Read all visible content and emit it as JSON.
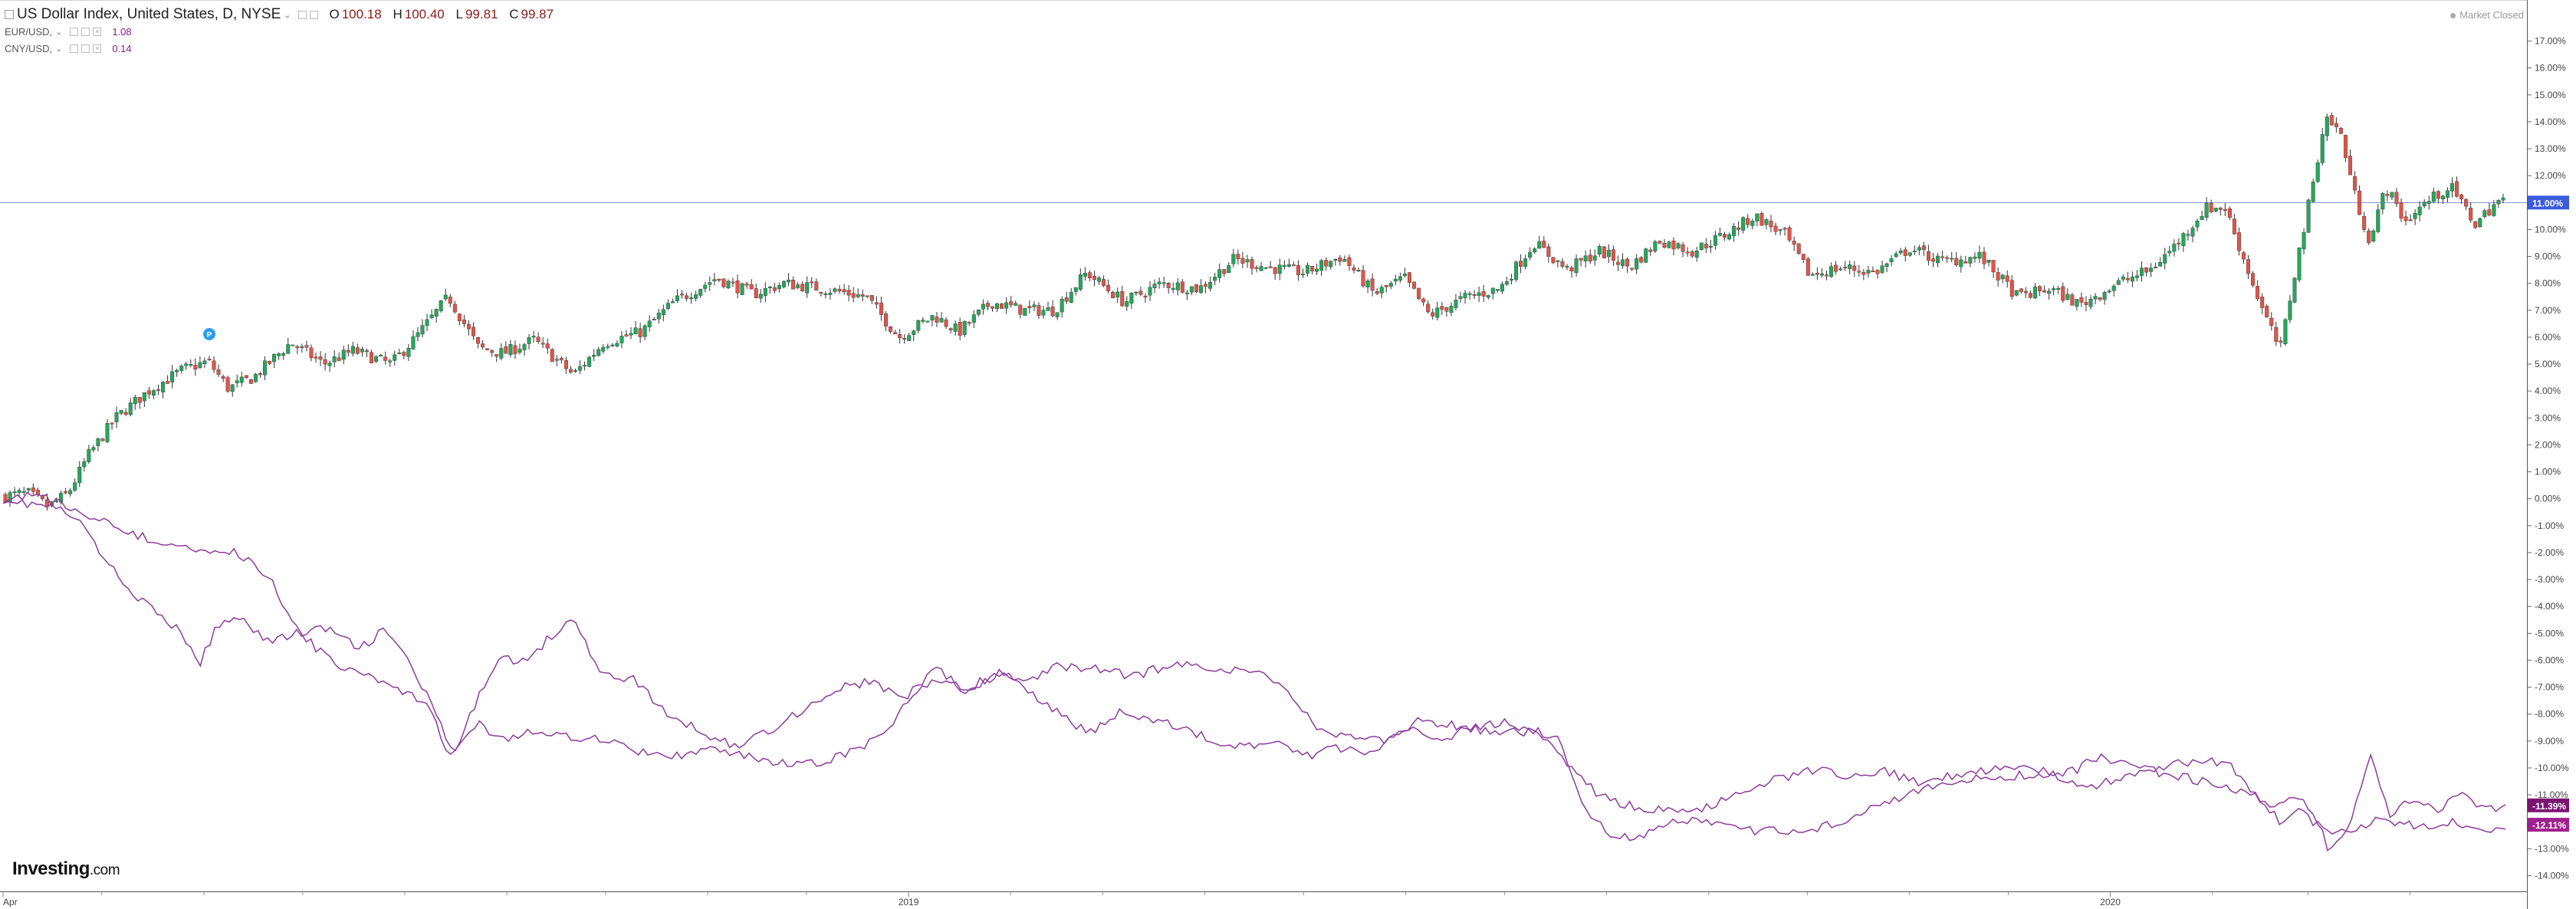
{
  "legend": {
    "main": {
      "title": "US Dollar Index, United States, D, NYSE",
      "open_label": "O",
      "open": "100.18",
      "high_label": "H",
      "high": "100.40",
      "low_label": "L",
      "low": "99.81",
      "close_label": "C",
      "close": "99.87"
    },
    "series": [
      {
        "name": "EUR/USD,",
        "value": "1.08"
      },
      {
        "name": "CNY/USD,",
        "value": "0.14"
      }
    ]
  },
  "status": "Market Closed",
  "logo": {
    "brand": "Investing",
    "suffix": ".com"
  },
  "marker_label": "P",
  "colors": {
    "up": "#26a65b",
    "down": "#e0554a",
    "line": "#8e3a9e",
    "price_line": "#7b8fd6",
    "price_tag": "#3b5bdb",
    "tag1": "#7b1470",
    "tag2": "#a0208f"
  },
  "chart_data": {
    "type": "candlestick+line",
    "y_unit": "% change",
    "ylim": [
      -14.5,
      17.5
    ],
    "y_ticks": [
      "17.00%",
      "16.00%",
      "15.00%",
      "14.00%",
      "13.00%",
      "12.00%",
      "11.00%",
      "10.00%",
      "9.00%",
      "8.00%",
      "7.00%",
      "6.00%",
      "5.00%",
      "4.00%",
      "3.00%",
      "2.00%",
      "1.00%",
      "0.00%",
      "-1.00%",
      "-2.00%",
      "-3.00%",
      "-4.00%",
      "-5.00%",
      "-6.00%",
      "-7.00%",
      "-8.00%",
      "-9.00%",
      "-10.00%",
      "-11.00%",
      "-12.00%",
      "-13.00%",
      "-14.00%"
    ],
    "x_labels": [
      "Apr",
      "2019",
      "2020"
    ],
    "x_label_positions": [
      "2018-04",
      "2019-01",
      "2020-01"
    ],
    "x_range": [
      "2018-04-01",
      "2020-04-30"
    ],
    "price_line": {
      "value": 11.0,
      "label": "11.00%"
    },
    "end_tags": [
      {
        "label": "-11.39%",
        "value": -11.39
      },
      {
        "label": "-12.11%",
        "value": -12.11
      }
    ],
    "usd_index_path": [
      {
        "t": 0.0,
        "v": 0.1
      },
      {
        "t": 0.01,
        "v": 0.2
      },
      {
        "t": 0.018,
        "v": -0.3
      },
      {
        "t": 0.026,
        "v": 0.2
      },
      {
        "t": 0.034,
        "v": 1.6
      },
      {
        "t": 0.045,
        "v": 3.0
      },
      {
        "t": 0.058,
        "v": 4.0
      },
      {
        "t": 0.072,
        "v": 4.8
      },
      {
        "t": 0.082,
        "v": 5.1
      },
      {
        "t": 0.09,
        "v": 4.1
      },
      {
        "t": 0.1,
        "v": 4.5
      },
      {
        "t": 0.115,
        "v": 5.8
      },
      {
        "t": 0.128,
        "v": 5.0
      },
      {
        "t": 0.14,
        "v": 5.5
      },
      {
        "t": 0.155,
        "v": 5.0
      },
      {
        "t": 0.165,
        "v": 6.0
      },
      {
        "t": 0.178,
        "v": 7.5
      },
      {
        "t": 0.19,
        "v": 5.6
      },
      {
        "t": 0.2,
        "v": 5.4
      },
      {
        "t": 0.212,
        "v": 5.9
      },
      {
        "t": 0.228,
        "v": 4.6
      },
      {
        "t": 0.24,
        "v": 5.8
      },
      {
        "t": 0.255,
        "v": 6.2
      },
      {
        "t": 0.268,
        "v": 7.3
      },
      {
        "t": 0.285,
        "v": 8.2
      },
      {
        "t": 0.3,
        "v": 7.6
      },
      {
        "t": 0.312,
        "v": 8.0
      },
      {
        "t": 0.328,
        "v": 7.8
      },
      {
        "t": 0.345,
        "v": 7.5
      },
      {
        "t": 0.358,
        "v": 6.0
      },
      {
        "t": 0.372,
        "v": 6.8
      },
      {
        "t": 0.382,
        "v": 6.2
      },
      {
        "t": 0.395,
        "v": 7.3
      },
      {
        "t": 0.408,
        "v": 7.0
      },
      {
        "t": 0.42,
        "v": 7.0
      },
      {
        "t": 0.433,
        "v": 8.4
      },
      {
        "t": 0.448,
        "v": 7.3
      },
      {
        "t": 0.463,
        "v": 8.0
      },
      {
        "t": 0.478,
        "v": 7.8
      },
      {
        "t": 0.492,
        "v": 8.9
      },
      {
        "t": 0.505,
        "v": 8.6
      },
      {
        "t": 0.52,
        "v": 8.4
      },
      {
        "t": 0.535,
        "v": 9.0
      },
      {
        "t": 0.548,
        "v": 7.6
      },
      {
        "t": 0.56,
        "v": 8.2
      },
      {
        "t": 0.57,
        "v": 6.8
      },
      {
        "t": 0.585,
        "v": 7.5
      },
      {
        "t": 0.598,
        "v": 7.8
      },
      {
        "t": 0.612,
        "v": 9.5
      },
      {
        "t": 0.625,
        "v": 8.5
      },
      {
        "t": 0.638,
        "v": 9.2
      },
      {
        "t": 0.65,
        "v": 8.6
      },
      {
        "t": 0.662,
        "v": 9.6
      },
      {
        "t": 0.675,
        "v": 9.2
      },
      {
        "t": 0.688,
        "v": 9.8
      },
      {
        "t": 0.7,
        "v": 10.5
      },
      {
        "t": 0.712,
        "v": 9.8
      },
      {
        "t": 0.722,
        "v": 8.3
      },
      {
        "t": 0.735,
        "v": 8.6
      },
      {
        "t": 0.748,
        "v": 8.4
      },
      {
        "t": 0.762,
        "v": 9.3
      },
      {
        "t": 0.775,
        "v": 8.8
      },
      {
        "t": 0.79,
        "v": 9.0
      },
      {
        "t": 0.805,
        "v": 7.5
      },
      {
        "t": 0.818,
        "v": 7.8
      },
      {
        "t": 0.83,
        "v": 7.2
      },
      {
        "t": 0.845,
        "v": 8.0
      },
      {
        "t": 0.858,
        "v": 8.5
      },
      {
        "t": 0.87,
        "v": 9.6
      },
      {
        "t": 0.88,
        "v": 10.8
      },
      {
        "t": 0.888,
        "v": 10.8
      },
      {
        "t": 0.895,
        "v": 9.0
      },
      {
        "t": 0.903,
        "v": 7.0
      },
      {
        "t": 0.91,
        "v": 5.5
      },
      {
        "t": 0.916,
        "v": 8.5
      },
      {
        "t": 0.922,
        "v": 11.2
      },
      {
        "t": 0.928,
        "v": 14.2
      },
      {
        "t": 0.934,
        "v": 13.6
      },
      {
        "t": 0.94,
        "v": 11.2
      },
      {
        "t": 0.946,
        "v": 9.5
      },
      {
        "t": 0.952,
        "v": 11.6
      },
      {
        "t": 0.96,
        "v": 10.3
      },
      {
        "t": 0.968,
        "v": 11.0
      },
      {
        "t": 0.978,
        "v": 11.6
      },
      {
        "t": 0.988,
        "v": 10.2
      },
      {
        "t": 0.996,
        "v": 11.0
      },
      {
        "t": 1.0,
        "v": 11.1
      }
    ],
    "series": [
      {
        "name": "EUR/USD",
        "path": [
          {
            "t": 0.0,
            "v": 0.0
          },
          {
            "t": 0.01,
            "v": -0.2
          },
          {
            "t": 0.02,
            "v": -0.3
          },
          {
            "t": 0.03,
            "v": -0.8
          },
          {
            "t": 0.045,
            "v": -2.8
          },
          {
            "t": 0.06,
            "v": -4.2
          },
          {
            "t": 0.072,
            "v": -5.0
          },
          {
            "t": 0.078,
            "v": -6.3
          },
          {
            "t": 0.085,
            "v": -4.8
          },
          {
            "t": 0.095,
            "v": -4.3
          },
          {
            "t": 0.105,
            "v": -5.3
          },
          {
            "t": 0.118,
            "v": -5.0
          },
          {
            "t": 0.13,
            "v": -4.8
          },
          {
            "t": 0.142,
            "v": -5.6
          },
          {
            "t": 0.152,
            "v": -4.9
          },
          {
            "t": 0.16,
            "v": -5.7
          },
          {
            "t": 0.172,
            "v": -7.8
          },
          {
            "t": 0.18,
            "v": -9.6
          },
          {
            "t": 0.188,
            "v": -7.8
          },
          {
            "t": 0.198,
            "v": -5.8
          },
          {
            "t": 0.208,
            "v": -6.1
          },
          {
            "t": 0.218,
            "v": -5.2
          },
          {
            "t": 0.228,
            "v": -4.3
          },
          {
            "t": 0.238,
            "v": -6.5
          },
          {
            "t": 0.252,
            "v": -6.7
          },
          {
            "t": 0.265,
            "v": -8.0
          },
          {
            "t": 0.28,
            "v": -8.7
          },
          {
            "t": 0.293,
            "v": -9.2
          },
          {
            "t": 0.308,
            "v": -8.5
          },
          {
            "t": 0.32,
            "v": -7.8
          },
          {
            "t": 0.335,
            "v": -7.0
          },
          {
            "t": 0.348,
            "v": -6.8
          },
          {
            "t": 0.36,
            "v": -7.5
          },
          {
            "t": 0.373,
            "v": -6.2
          },
          {
            "t": 0.385,
            "v": -7.3
          },
          {
            "t": 0.398,
            "v": -6.5
          },
          {
            "t": 0.41,
            "v": -6.8
          },
          {
            "t": 0.422,
            "v": -6.2
          },
          {
            "t": 0.436,
            "v": -6.3
          },
          {
            "t": 0.452,
            "v": -6.6
          },
          {
            "t": 0.465,
            "v": -6.2
          },
          {
            "t": 0.48,
            "v": -6.2
          },
          {
            "t": 0.492,
            "v": -6.4
          },
          {
            "t": 0.505,
            "v": -6.5
          },
          {
            "t": 0.515,
            "v": -7.3
          },
          {
            "t": 0.527,
            "v": -8.7
          },
          {
            "t": 0.54,
            "v": -8.8
          },
          {
            "t": 0.552,
            "v": -9.0
          },
          {
            "t": 0.565,
            "v": -8.6
          },
          {
            "t": 0.575,
            "v": -8.9
          },
          {
            "t": 0.585,
            "v": -8.6
          },
          {
            "t": 0.598,
            "v": -8.3
          },
          {
            "t": 0.61,
            "v": -8.5
          },
          {
            "t": 0.622,
            "v": -9.0
          },
          {
            "t": 0.632,
            "v": -11.5
          },
          {
            "t": 0.642,
            "v": -12.4
          },
          {
            "t": 0.652,
            "v": -12.7
          },
          {
            "t": 0.665,
            "v": -12.1
          },
          {
            "t": 0.678,
            "v": -11.9
          },
          {
            "t": 0.69,
            "v": -12.2
          },
          {
            "t": 0.702,
            "v": -12.4
          },
          {
            "t": 0.712,
            "v": -12.3
          },
          {
            "t": 0.722,
            "v": -12.3
          },
          {
            "t": 0.735,
            "v": -12.0
          },
          {
            "t": 0.748,
            "v": -11.3
          },
          {
            "t": 0.762,
            "v": -11.0
          },
          {
            "t": 0.775,
            "v": -10.6
          },
          {
            "t": 0.79,
            "v": -10.4
          },
          {
            "t": 0.805,
            "v": -10.3
          },
          {
            "t": 0.818,
            "v": -10.2
          },
          {
            "t": 0.832,
            "v": -10.8
          },
          {
            "t": 0.845,
            "v": -10.4
          },
          {
            "t": 0.858,
            "v": -10.0
          },
          {
            "t": 0.87,
            "v": -9.8
          },
          {
            "t": 0.88,
            "v": -9.7
          },
          {
            "t": 0.89,
            "v": -9.9
          },
          {
            "t": 0.9,
            "v": -11.0
          },
          {
            "t": 0.908,
            "v": -11.5
          },
          {
            "t": 0.916,
            "v": -11.0
          },
          {
            "t": 0.924,
            "v": -11.8
          },
          {
            "t": 0.93,
            "v": -13.2
          },
          {
            "t": 0.938,
            "v": -12.0
          },
          {
            "t": 0.946,
            "v": -9.6
          },
          {
            "t": 0.954,
            "v": -11.8
          },
          {
            "t": 0.962,
            "v": -11.2
          },
          {
            "t": 0.972,
            "v": -11.6
          },
          {
            "t": 0.982,
            "v": -11.0
          },
          {
            "t": 0.992,
            "v": -11.6
          },
          {
            "t": 1.0,
            "v": -11.4
          }
        ]
      },
      {
        "name": "CNY/USD",
        "path": [
          {
            "t": 0.0,
            "v": 0.0
          },
          {
            "t": 0.012,
            "v": 0.2
          },
          {
            "t": 0.022,
            "v": -0.2
          },
          {
            "t": 0.032,
            "v": -0.5
          },
          {
            "t": 0.045,
            "v": -1.0
          },
          {
            "t": 0.06,
            "v": -1.6
          },
          {
            "t": 0.075,
            "v": -1.8
          },
          {
            "t": 0.088,
            "v": -1.9
          },
          {
            "t": 0.098,
            "v": -2.2
          },
          {
            "t": 0.108,
            "v": -3.2
          },
          {
            "t": 0.118,
            "v": -4.9
          },
          {
            "t": 0.13,
            "v": -6.0
          },
          {
            "t": 0.145,
            "v": -6.6
          },
          {
            "t": 0.158,
            "v": -7.0
          },
          {
            "t": 0.17,
            "v": -7.8
          },
          {
            "t": 0.178,
            "v": -9.4
          },
          {
            "t": 0.19,
            "v": -8.4
          },
          {
            "t": 0.2,
            "v": -8.9
          },
          {
            "t": 0.212,
            "v": -8.6
          },
          {
            "t": 0.225,
            "v": -8.8
          },
          {
            "t": 0.238,
            "v": -8.9
          },
          {
            "t": 0.25,
            "v": -9.3
          },
          {
            "t": 0.262,
            "v": -9.6
          },
          {
            "t": 0.275,
            "v": -9.5
          },
          {
            "t": 0.288,
            "v": -9.3
          },
          {
            "t": 0.302,
            "v": -9.7
          },
          {
            "t": 0.315,
            "v": -9.9
          },
          {
            "t": 0.328,
            "v": -9.8
          },
          {
            "t": 0.34,
            "v": -9.4
          },
          {
            "t": 0.352,
            "v": -8.7
          },
          {
            "t": 0.364,
            "v": -7.3
          },
          {
            "t": 0.374,
            "v": -6.7
          },
          {
            "t": 0.386,
            "v": -7.0
          },
          {
            "t": 0.398,
            "v": -6.5
          },
          {
            "t": 0.41,
            "v": -7.2
          },
          {
            "t": 0.422,
            "v": -8.0
          },
          {
            "t": 0.434,
            "v": -8.7
          },
          {
            "t": 0.446,
            "v": -7.9
          },
          {
            "t": 0.458,
            "v": -8.2
          },
          {
            "t": 0.47,
            "v": -8.5
          },
          {
            "t": 0.482,
            "v": -8.9
          },
          {
            "t": 0.495,
            "v": -9.2
          },
          {
            "t": 0.508,
            "v": -9.1
          },
          {
            "t": 0.52,
            "v": -9.6
          },
          {
            "t": 0.532,
            "v": -9.2
          },
          {
            "t": 0.545,
            "v": -9.5
          },
          {
            "t": 0.555,
            "v": -8.8
          },
          {
            "t": 0.565,
            "v": -8.3
          },
          {
            "t": 0.578,
            "v": -8.4
          },
          {
            "t": 0.59,
            "v": -8.6
          },
          {
            "t": 0.602,
            "v": -8.6
          },
          {
            "t": 0.614,
            "v": -8.7
          },
          {
            "t": 0.626,
            "v": -10.0
          },
          {
            "t": 0.638,
            "v": -11.0
          },
          {
            "t": 0.65,
            "v": -11.4
          },
          {
            "t": 0.662,
            "v": -11.6
          },
          {
            "t": 0.675,
            "v": -11.7
          },
          {
            "t": 0.688,
            "v": -11.2
          },
          {
            "t": 0.7,
            "v": -10.6
          },
          {
            "t": 0.712,
            "v": -10.4
          },
          {
            "t": 0.725,
            "v": -10.0
          },
          {
            "t": 0.738,
            "v": -10.3
          },
          {
            "t": 0.75,
            "v": -10.1
          },
          {
            "t": 0.765,
            "v": -10.5
          },
          {
            "t": 0.78,
            "v": -10.3
          },
          {
            "t": 0.795,
            "v": -10.1
          },
          {
            "t": 0.81,
            "v": -10.0
          },
          {
            "t": 0.825,
            "v": -10.2
          },
          {
            "t": 0.838,
            "v": -9.6
          },
          {
            "t": 0.85,
            "v": -9.9
          },
          {
            "t": 0.862,
            "v": -10.2
          },
          {
            "t": 0.874,
            "v": -10.4
          },
          {
            "t": 0.884,
            "v": -10.6
          },
          {
            "t": 0.894,
            "v": -10.8
          },
          {
            "t": 0.902,
            "v": -11.2
          },
          {
            "t": 0.91,
            "v": -12.0
          },
          {
            "t": 0.918,
            "v": -11.6
          },
          {
            "t": 0.926,
            "v": -12.2
          },
          {
            "t": 0.934,
            "v": -12.4
          },
          {
            "t": 0.942,
            "v": -12.3
          },
          {
            "t": 0.95,
            "v": -11.9
          },
          {
            "t": 0.96,
            "v": -12.1
          },
          {
            "t": 0.97,
            "v": -12.3
          },
          {
            "t": 0.98,
            "v": -12.0
          },
          {
            "t": 0.99,
            "v": -12.4
          },
          {
            "t": 1.0,
            "v": -12.1
          }
        ]
      }
    ]
  }
}
